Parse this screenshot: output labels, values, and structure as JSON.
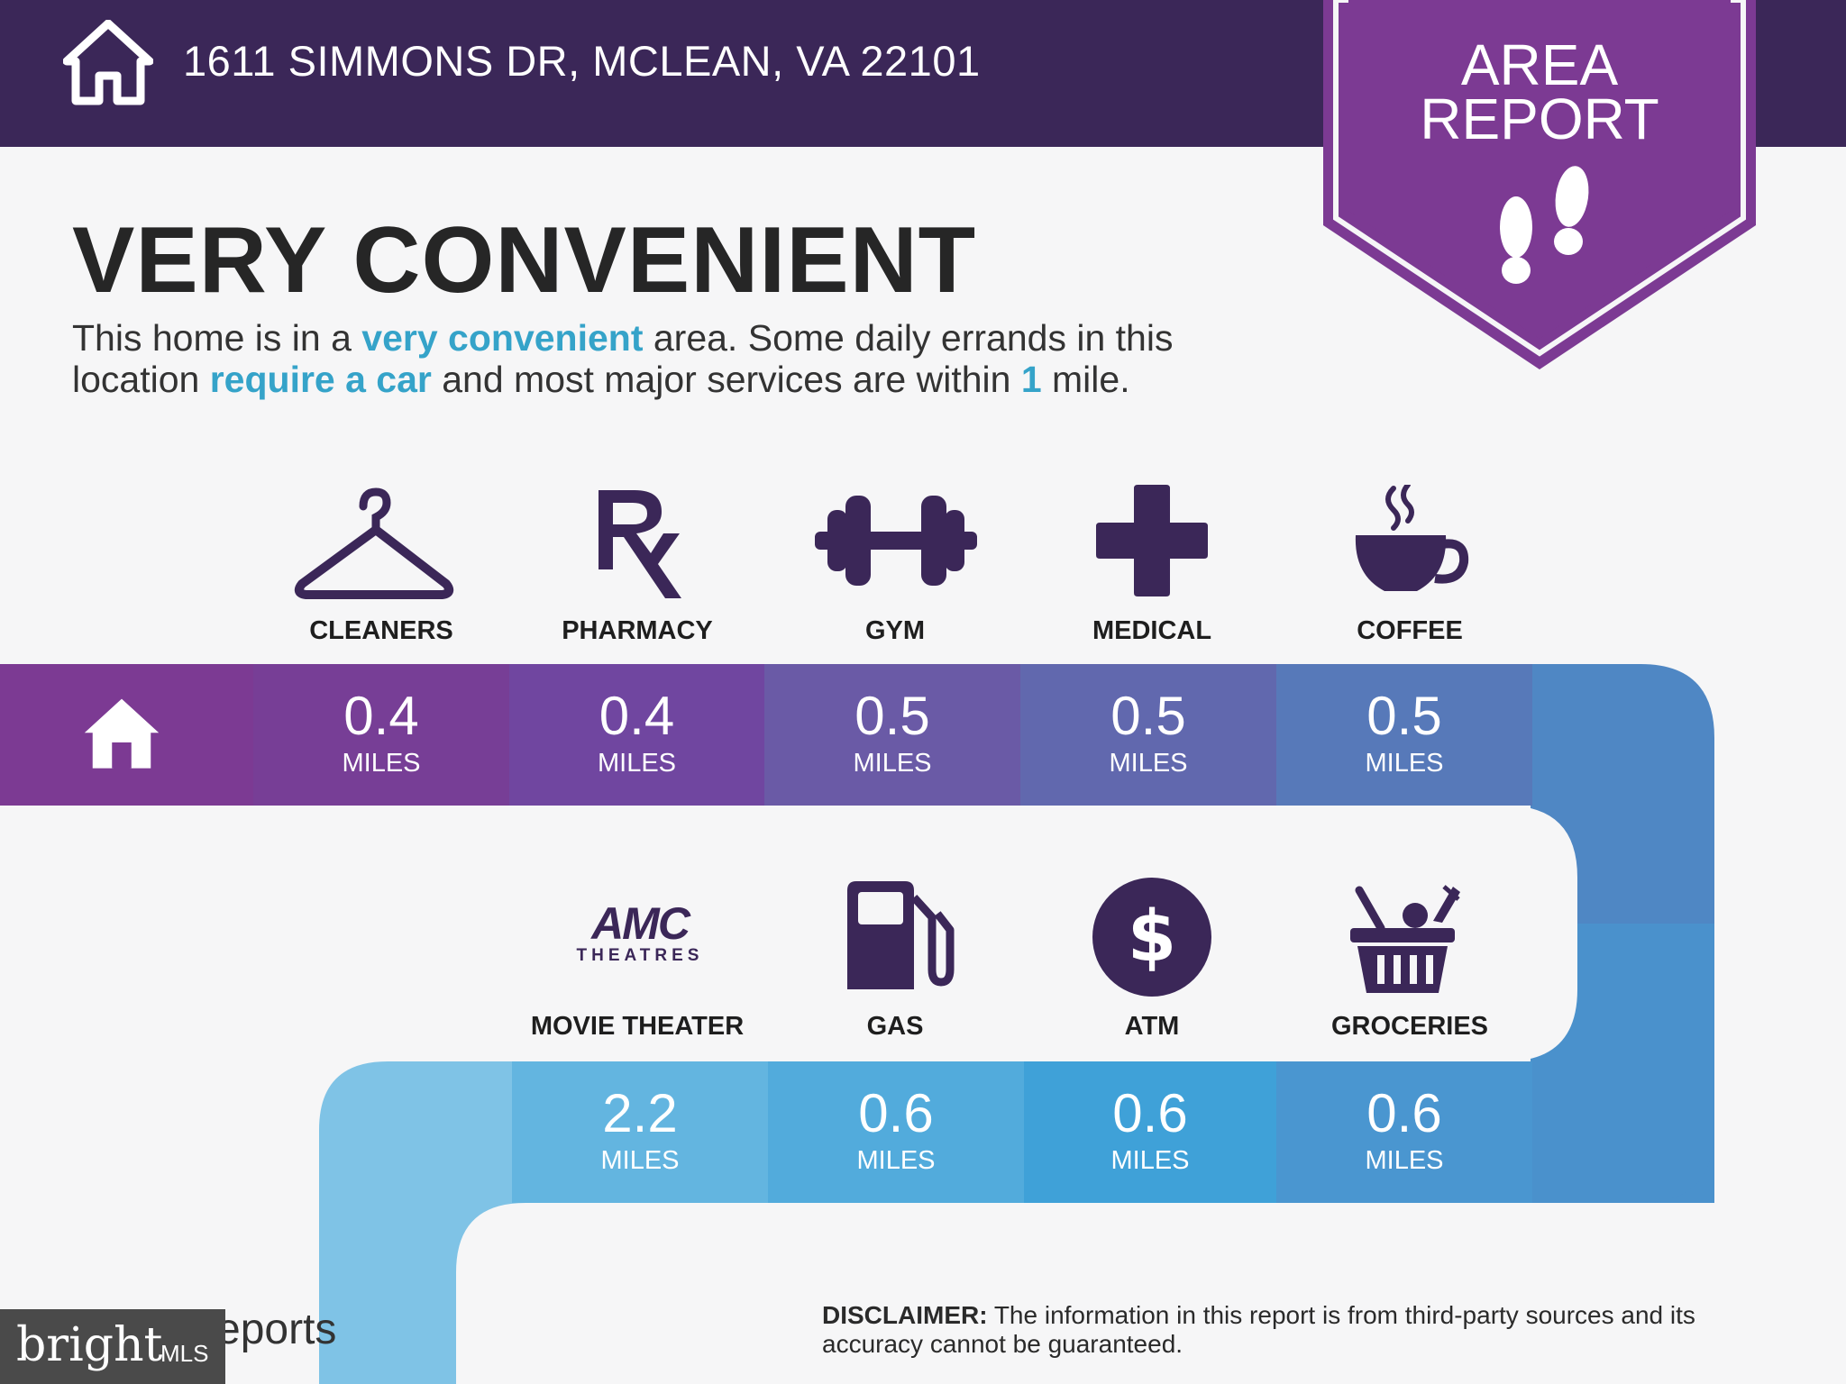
{
  "header": {
    "address": "1611 SIMMONS DR, MCLEAN, VA 22101",
    "icon": "home-icon"
  },
  "badge": {
    "line1": "AREA",
    "line2": "REPORT",
    "icon": "footprints-icon"
  },
  "headline": "VERY CONVENIENT",
  "description": {
    "line1_a": "This home is in a ",
    "line1_hl": "very convenient",
    "line1_b": " area. Some daily errands in this",
    "line2_a": "location ",
    "line2_hl": "require a car",
    "line2_b": " and most major services are within ",
    "line2_hl2": "1",
    "line2_c": " mile."
  },
  "row1": [
    {
      "label": "CLEANERS",
      "value": "0.4",
      "unit": "MILES",
      "icon": "hanger-icon"
    },
    {
      "label": "PHARMACY",
      "value": "0.4",
      "unit": "MILES",
      "icon": "rx-icon"
    },
    {
      "label": "GYM",
      "value": "0.5",
      "unit": "MILES",
      "icon": "dumbbell-icon"
    },
    {
      "label": "MEDICAL",
      "value": "0.5",
      "unit": "MILES",
      "icon": "medical-cross-icon"
    },
    {
      "label": "COFFEE",
      "value": "0.5",
      "unit": "MILES",
      "icon": "coffee-cup-icon"
    }
  ],
  "row2": [
    {
      "label": "MOVIE THEATER",
      "value": "2.2",
      "unit": "MILES",
      "icon": "amc-logo",
      "logo_top": "AMC",
      "logo_bottom": "THEATRES"
    },
    {
      "label": "GAS",
      "value": "0.6",
      "unit": "MILES",
      "icon": "gas-pump-icon"
    },
    {
      "label": "ATM",
      "value": "0.6",
      "unit": "MILES",
      "icon": "dollar-icon"
    },
    {
      "label": "GROCERIES",
      "value": "0.6",
      "unit": "MILES",
      "icon": "basket-icon"
    }
  ],
  "disclaimer": {
    "bold": "DISCLAIMER:",
    "text": " The information in this report is from third-party sources and its accuracy cannot be guaranteed."
  },
  "footer": {
    "reports_fragment": "eports",
    "bright_word": "bright",
    "bright_mls": "MLS"
  },
  "colors": {
    "header": "#3b2758",
    "badge": "#7c3a93",
    "icon_dark": "#3b2758",
    "accent_text": "#35a3c9"
  }
}
